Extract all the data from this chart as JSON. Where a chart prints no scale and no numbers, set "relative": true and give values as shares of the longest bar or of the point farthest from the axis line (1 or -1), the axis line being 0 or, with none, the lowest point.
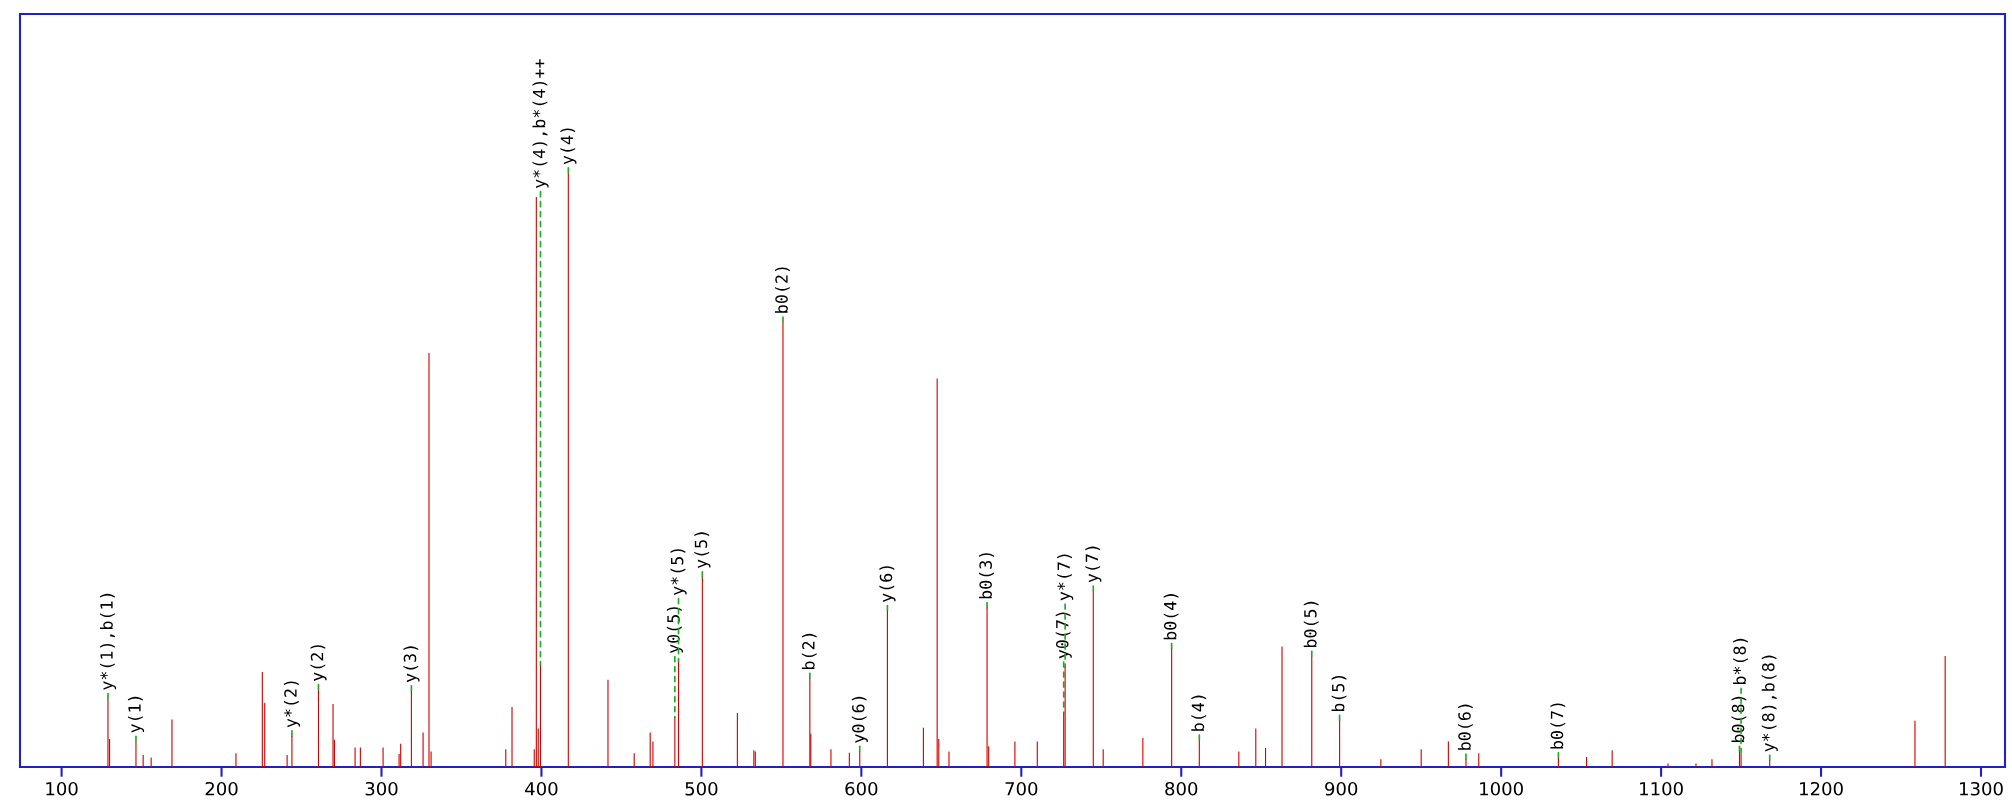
{
  "chart_data": {
    "type": "bar",
    "relative": true,
    "color": "#d40000",
    "x": [
      129,
      130,
      146.5,
      151,
      156,
      169,
      209,
      225.5,
      227,
      241,
      244,
      260.6,
      269.7,
      270.6,
      283.5,
      286.8,
      301,
      311,
      312,
      318.7,
      326,
      329.7,
      331,
      377.7,
      381.6,
      395.5,
      396.8,
      398,
      399.4,
      416.8,
      441.6,
      458,
      468,
      469.7,
      483.4,
      485.7,
      500.6,
      522.5,
      532.8,
      533.7,
      551,
      567.8,
      568.4,
      581,
      592.5,
      599,
      616.3,
      638.8,
      647.4,
      648.4,
      654.8,
      678.6,
      679.6,
      696,
      710,
      726.5,
      727.4,
      745,
      751.2,
      776,
      794,
      811.3,
      836,
      846.6,
      852.7,
      863,
      881.6,
      899,
      924.8,
      950,
      967,
      978,
      986,
      1035.8,
      1053.4,
      1069.4,
      1104.3,
      1121.8,
      1131.8,
      1149,
      1150,
      1167.9,
      1258.7,
      1277.6
    ],
    "values": [
      0.115,
      0.047,
      0.043,
      0.02,
      0.016,
      0.08,
      0.023,
      0.16,
      0.108,
      0.02,
      0.052,
      0.13,
      0.106,
      0.046,
      0.033,
      0.033,
      0.033,
      0.022,
      0.039,
      0.128,
      0.058,
      0.697,
      0.026,
      0.03,
      0.101,
      0.03,
      0.96,
      0.065,
      0.171,
      1.0,
      0.147,
      0.023,
      0.058,
      0.043,
      0.084,
      0.177,
      0.32,
      0.091,
      0.028,
      0.026,
      0.749,
      0.149,
      0.056,
      0.03,
      0.024,
      0.026,
      0.263,
      0.066,
      0.654,
      0.047,
      0.026,
      0.268,
      0.035,
      0.043,
      0.043,
      0.091,
      0.168,
      0.296,
      0.03,
      0.049,
      0.199,
      0.045,
      0.026,
      0.065,
      0.032,
      0.203,
      0.186,
      0.078,
      0.013,
      0.03,
      0.043,
      0.013,
      0.023,
      0.015,
      0.017,
      0.028,
      0.006,
      0.006,
      0.013,
      0.026,
      0.022,
      0.011,
      0.078,
      0.187
    ],
    "xlim": [
      74,
      1315
    ],
    "xticks": [
      100,
      200,
      300,
      400,
      500,
      600,
      700,
      800,
      900,
      1000,
      1100,
      1200,
      1300
    ],
    "tick_labels": "x",
    "annotations": [
      {
        "text": "y*(1),b(1)",
        "x": 129,
        "y": 0.115
      },
      {
        "text": "y(1)",
        "x": 146.5,
        "y": 0.043
      },
      {
        "text": "y*(2)",
        "x": 244,
        "y": 0.052
      },
      {
        "text": "y(2)",
        "x": 260.6,
        "y": 0.13
      },
      {
        "text": "y(3)",
        "x": 318.7,
        "y": 0.128
      },
      {
        "text": "y*(4),b*(4)++",
        "x": 399.4,
        "y": 0.171
      },
      {
        "text": "y(4)",
        "x": 416.8,
        "y": 1.0
      },
      {
        "text": "y0(5)",
        "x": 483.4,
        "y": 0.084
      },
      {
        "text": "y*(5)",
        "x": 485.7,
        "y": 0.177
      },
      {
        "text": "y(5)",
        "x": 500.6,
        "y": 0.32
      },
      {
        "text": "b0(2)",
        "x": 551,
        "y": 0.749
      },
      {
        "text": "b(2)",
        "x": 567.8,
        "y": 0.149
      },
      {
        "text": "y0(6)",
        "x": 599,
        "y": 0.026
      },
      {
        "text": "y(6)",
        "x": 616.3,
        "y": 0.263
      },
      {
        "text": "b0(3)",
        "x": 678.6,
        "y": 0.268
      },
      {
        "text": "y0(7)",
        "x": 726.5,
        "y": 0.091
      },
      {
        "text": "y*(7)",
        "x": 727.4,
        "y": 0.168
      },
      {
        "text": "y(7)",
        "x": 745,
        "y": 0.296
      },
      {
        "text": "b0(4)",
        "x": 794,
        "y": 0.199
      },
      {
        "text": "b(4)",
        "x": 811.3,
        "y": 0.045
      },
      {
        "text": "b0(5)",
        "x": 881.6,
        "y": 0.186
      },
      {
        "text": "b(5)",
        "x": 899,
        "y": 0.078
      },
      {
        "text": "b0(6)",
        "x": 978,
        "y": 0.013
      },
      {
        "text": "b0(7)",
        "x": 1035.8,
        "y": 0.015
      },
      {
        "text": "b0(8)",
        "x": 1149,
        "y": 0.026
      },
      {
        "text": "b*(8)",
        "x": 1150,
        "y": 0.022
      },
      {
        "text": "y*(8),b(8)",
        "x": 1167.9,
        "y": 0.011
      }
    ]
  }
}
